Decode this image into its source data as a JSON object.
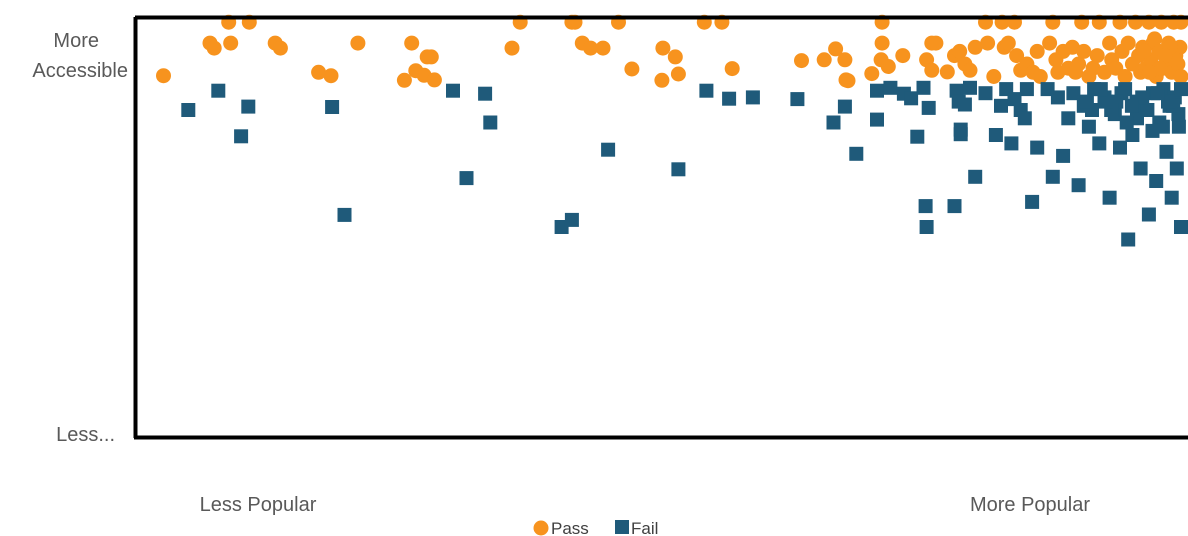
{
  "chart_data": {
    "type": "scatter",
    "title": "",
    "xlabel": "",
    "ylabel": "",
    "x_tick_labels": {
      "low": "Less Popular",
      "high": "More Popular"
    },
    "y_tick_labels": {
      "high_line1": "More",
      "high_line2": "Accessible",
      "low": "Less..."
    },
    "xlim": [
      0,
      1
    ],
    "ylim": [
      0,
      1
    ],
    "grid": false,
    "legend_position": "bottom",
    "colors": {
      "pass": "#F7931E",
      "fail": "#1F5A7A"
    },
    "series": [
      {
        "name": "Pass",
        "marker": "circle",
        "points": [
          [
            0.015,
            0.862
          ],
          [
            0.078,
            0.99
          ],
          [
            0.098,
            0.99
          ],
          [
            0.06,
            0.94
          ],
          [
            0.064,
            0.928
          ],
          [
            0.08,
            0.94
          ],
          [
            0.123,
            0.94
          ],
          [
            0.128,
            0.928
          ],
          [
            0.165,
            0.87
          ],
          [
            0.177,
            0.862
          ],
          [
            0.203,
            0.94
          ],
          [
            0.248,
            0.851
          ],
          [
            0.255,
            0.94
          ],
          [
            0.259,
            0.874
          ],
          [
            0.267,
            0.863
          ],
          [
            0.27,
            0.907
          ],
          [
            0.274,
            0.907
          ],
          [
            0.277,
            0.852
          ],
          [
            0.352,
            0.928
          ],
          [
            0.36,
            0.99
          ],
          [
            0.41,
            0.99
          ],
          [
            0.413,
            0.99
          ],
          [
            0.42,
            0.94
          ],
          [
            0.428,
            0.928
          ],
          [
            0.44,
            0.928
          ],
          [
            0.455,
            0.99
          ],
          [
            0.468,
            0.878
          ],
          [
            0.498,
            0.928
          ],
          [
            0.51,
            0.907
          ],
          [
            0.497,
            0.851
          ],
          [
            0.513,
            0.866
          ],
          [
            0.538,
            0.99
          ],
          [
            0.555,
            0.99
          ],
          [
            0.565,
            0.879
          ],
          [
            0.632,
            0.898
          ],
          [
            0.654,
            0.9
          ],
          [
            0.665,
            0.926
          ],
          [
            0.674,
            0.9
          ],
          [
            0.677,
            0.85
          ],
          [
            0.675,
            0.852
          ],
          [
            0.7,
            0.867
          ],
          [
            0.71,
            0.99
          ],
          [
            0.709,
            0.9
          ],
          [
            0.71,
            0.94
          ],
          [
            0.716,
            0.884
          ],
          [
            0.73,
            0.91
          ],
          [
            0.753,
            0.9
          ],
          [
            0.758,
            0.94
          ],
          [
            0.762,
            0.94
          ],
          [
            0.758,
            0.875
          ],
          [
            0.773,
            0.871
          ],
          [
            0.78,
            0.91
          ],
          [
            0.785,
            0.92
          ],
          [
            0.79,
            0.89
          ],
          [
            0.795,
            0.875
          ],
          [
            0.8,
            0.93
          ],
          [
            0.81,
            0.99
          ],
          [
            0.812,
            0.94
          ],
          [
            0.818,
            0.86
          ],
          [
            0.826,
            0.99
          ],
          [
            0.828,
            0.93
          ],
          [
            0.832,
            0.94
          ],
          [
            0.838,
            0.99
          ],
          [
            0.84,
            0.91
          ],
          [
            0.844,
            0.875
          ],
          [
            0.85,
            0.89
          ],
          [
            0.856,
            0.87
          ],
          [
            0.86,
            0.92
          ],
          [
            0.863,
            0.86
          ],
          [
            0.872,
            0.94
          ],
          [
            0.875,
            0.99
          ],
          [
            0.878,
            0.9
          ],
          [
            0.88,
            0.87
          ],
          [
            0.885,
            0.92
          ],
          [
            0.89,
            0.88
          ],
          [
            0.894,
            0.93
          ],
          [
            0.897,
            0.87
          ],
          [
            0.9,
            0.89
          ],
          [
            0.903,
            0.99
          ],
          [
            0.905,
            0.92
          ],
          [
            0.91,
            0.86
          ],
          [
            0.914,
            0.88
          ],
          [
            0.918,
            0.91
          ],
          [
            0.92,
            0.99
          ],
          [
            0.925,
            0.87
          ],
          [
            0.93,
            0.94
          ],
          [
            0.932,
            0.9
          ],
          [
            0.936,
            0.88
          ],
          [
            0.94,
            0.99
          ],
          [
            0.942,
            0.92
          ],
          [
            0.945,
            0.86
          ],
          [
            0.948,
            0.94
          ],
          [
            0.952,
            0.89
          ],
          [
            0.955,
            0.99
          ],
          [
            0.958,
            0.91
          ],
          [
            0.96,
            0.87
          ],
          [
            0.962,
            0.93
          ],
          [
            0.965,
            0.88
          ],
          [
            0.968,
            0.99
          ],
          [
            0.97,
            0.9
          ],
          [
            0.972,
            0.94
          ],
          [
            0.975,
            0.86
          ],
          [
            0.978,
            0.92
          ],
          [
            0.98,
            0.99
          ],
          [
            0.982,
            0.88
          ],
          [
            0.985,
            0.9
          ],
          [
            0.987,
            0.94
          ],
          [
            0.99,
            0.87
          ],
          [
            0.992,
            0.99
          ],
          [
            0.994,
            0.91
          ],
          [
            0.996,
            0.89
          ],
          [
            0.998,
            0.93
          ],
          [
            0.999,
            0.86
          ],
          [
            0.999,
            0.99
          ],
          [
            0.9935,
            0.9
          ],
          [
            0.9885,
            0.93
          ],
          [
            0.9835,
            0.91
          ],
          [
            0.9785,
            0.88
          ],
          [
            0.9735,
            0.95
          ],
          [
            0.9685,
            0.87
          ],
          [
            0.9635,
            0.92
          ]
        ]
      },
      {
        "name": "Fail",
        "marker": "square",
        "points": [
          [
            0.039,
            0.78
          ],
          [
            0.068,
            0.826
          ],
          [
            0.09,
            0.717
          ],
          [
            0.097,
            0.788
          ],
          [
            0.178,
            0.787
          ],
          [
            0.19,
            0.529
          ],
          [
            0.295,
            0.826
          ],
          [
            0.308,
            0.617
          ],
          [
            0.326,
            0.819
          ],
          [
            0.331,
            0.75
          ],
          [
            0.4,
            0.5
          ],
          [
            0.41,
            0.517
          ],
          [
            0.445,
            0.685
          ],
          [
            0.513,
            0.638
          ],
          [
            0.54,
            0.826
          ],
          [
            0.562,
            0.807
          ],
          [
            0.585,
            0.81
          ],
          [
            0.628,
            0.806
          ],
          [
            0.663,
            0.75
          ],
          [
            0.674,
            0.788
          ],
          [
            0.685,
            0.675
          ],
          [
            0.705,
            0.757
          ],
          [
            0.705,
            0.826
          ],
          [
            0.718,
            0.833
          ],
          [
            0.731,
            0.819
          ],
          [
            0.738,
            0.808
          ],
          [
            0.75,
            0.833
          ],
          [
            0.752,
            0.55
          ],
          [
            0.753,
            0.5
          ],
          [
            0.755,
            0.785
          ],
          [
            0.744,
            0.716
          ],
          [
            0.78,
            0.55
          ],
          [
            0.782,
            0.826
          ],
          [
            0.784,
            0.8
          ],
          [
            0.786,
            0.722
          ],
          [
            0.786,
            0.733
          ],
          [
            0.79,
            0.793
          ],
          [
            0.795,
            0.833
          ],
          [
            0.8,
            0.62
          ],
          [
            0.81,
            0.82
          ],
          [
            0.82,
            0.72
          ],
          [
            0.825,
            0.79
          ],
          [
            0.83,
            0.83
          ],
          [
            0.835,
            0.7
          ],
          [
            0.838,
            0.806
          ],
          [
            0.844,
            0.78
          ],
          [
            0.848,
            0.76
          ],
          [
            0.85,
            0.83
          ],
          [
            0.855,
            0.56
          ],
          [
            0.86,
            0.69
          ],
          [
            0.87,
            0.83
          ],
          [
            0.875,
            0.62
          ],
          [
            0.88,
            0.81
          ],
          [
            0.885,
            0.67
          ],
          [
            0.89,
            0.76
          ],
          [
            0.895,
            0.82
          ],
          [
            0.9,
            0.6
          ],
          [
            0.905,
            0.79
          ],
          [
            0.91,
            0.74
          ],
          [
            0.915,
            0.83
          ],
          [
            0.92,
            0.7
          ],
          [
            0.925,
            0.81
          ],
          [
            0.93,
            0.57
          ],
          [
            0.935,
            0.77
          ],
          [
            0.94,
            0.69
          ],
          [
            0.945,
            0.83
          ],
          [
            0.948,
            0.47
          ],
          [
            0.952,
            0.72
          ],
          [
            0.956,
            0.8
          ],
          [
            0.96,
            0.64
          ],
          [
            0.964,
            0.78
          ],
          [
            0.968,
            0.53
          ],
          [
            0.972,
            0.82
          ],
          [
            0.975,
            0.61
          ],
          [
            0.978,
            0.75
          ],
          [
            0.982,
            0.83
          ],
          [
            0.985,
            0.68
          ],
          [
            0.988,
            0.79
          ],
          [
            0.99,
            0.57
          ],
          [
            0.993,
            0.81
          ],
          [
            0.995,
            0.64
          ],
          [
            0.997,
            0.74
          ],
          [
            0.999,
            0.5
          ],
          [
            0.999,
            0.83
          ],
          [
            0.9965,
            0.77
          ],
          [
            0.9915,
            0.79
          ],
          [
            0.9865,
            0.8
          ],
          [
            0.9815,
            0.74
          ],
          [
            0.9765,
            0.82
          ],
          [
            0.9715,
            0.73
          ],
          [
            0.9665,
            0.78
          ],
          [
            0.9615,
            0.81
          ],
          [
            0.9565,
            0.76
          ],
          [
            0.9515,
            0.79
          ],
          [
            0.9465,
            0.75
          ],
          [
            0.9415,
            0.82
          ],
          [
            0.9365,
            0.8
          ],
          [
            0.9315,
            0.78
          ],
          [
            0.9265,
            0.8
          ],
          [
            0.9215,
            0.83
          ],
          [
            0.913,
            0.78
          ],
          [
            0.908,
            0.8
          ]
        ]
      }
    ]
  }
}
